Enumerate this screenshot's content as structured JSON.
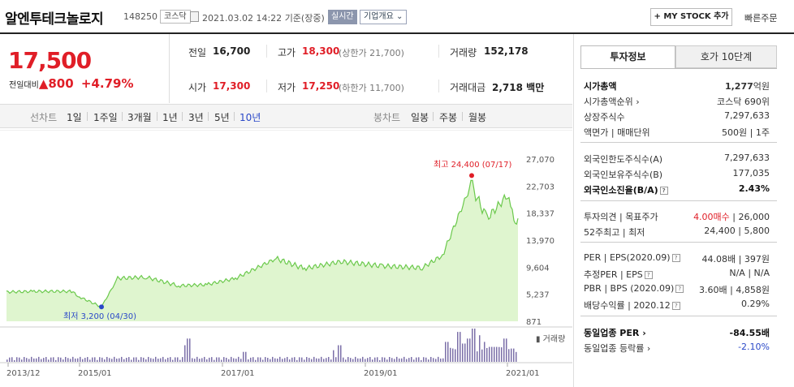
{
  "header": {
    "stock_name": "알엔투테크놀로지",
    "stock_code": "148250",
    "market": "코스닥",
    "datetime": "2021.03.02 14:22",
    "basis": "기준(장중)",
    "realtime_label": "실시간",
    "corp_overview_label": "기업개요",
    "my_stock_label": "+ MY STOCK 추가",
    "quick_order_label": "빠른주문"
  },
  "price": {
    "current": "17,500",
    "change_label": "전일대비",
    "change_arrow": "▲",
    "change": "800",
    "change_pct": "+4.79%"
  },
  "stats": {
    "prev_close_label": "전일",
    "prev_close": "16,700",
    "high_label": "고가",
    "high": "18,300",
    "upper_limit_text": "(상한가 21,700)",
    "volume_label": "거래량",
    "volume": "152,178",
    "open_label": "시가",
    "open": "17,300",
    "low_label": "저가",
    "low": "17,250",
    "lower_limit_text": "(하한가 11,700)",
    "trade_value_label": "거래대금",
    "trade_value": "2,718",
    "trade_value_unit": "백만"
  },
  "period_bar": {
    "line_chart_label": "선차트",
    "periods": [
      "1일",
      "1주일",
      "3개월",
      "1년",
      "3년",
      "5년",
      "10년"
    ],
    "active_period": "10년",
    "candle_chart_label": "봉차트",
    "candle_periods": [
      "일봉",
      "주봉",
      "월봉"
    ]
  },
  "tabs": {
    "investment_info": "투자정보",
    "order_book": "호가 10단계"
  },
  "info": {
    "market_cap_label": "시가총액",
    "market_cap": "1,277",
    "market_cap_unit": "억원",
    "market_cap_rank_label": "시가총액순위",
    "market_cap_rank": "코스닥 690위",
    "shares_label": "상장주식수",
    "shares": "7,297,633",
    "face_value_label": "액면가",
    "trade_unit_label": "매매단위",
    "face_value": "500원",
    "trade_unit": "1주",
    "foreign_limit_label": "외국인한도주식수(A)",
    "foreign_limit": "7,297,633",
    "foreign_hold_label": "외국인보유주식수(B)",
    "foreign_hold": "177,035",
    "foreign_ratio_label": "외국인소진율(B/A)",
    "foreign_ratio": "2.43%",
    "opinion_label": "투자의견",
    "target_label": "목표주가",
    "opinion": "4.00매수",
    "target": "26,000",
    "w52_label": "52주최고",
    "w52_low_label": "최저",
    "w52_high": "24,400",
    "w52_low": "5,800",
    "per_label": "PER",
    "eps_label": "EPS(2020.09)",
    "per": "44.08배",
    "eps": "397원",
    "est_per_label": "추정PER",
    "est_eps_label": "EPS",
    "est_per": "N/A",
    "est_eps": "N/A",
    "pbr_label": "PBR",
    "bps_label": "BPS (2020.09)",
    "pbr": "3.60배",
    "bps": "4,858원",
    "dividend_label": "배당수익률",
    "dividend_date": "2020.12",
    "dividend": "0.29%",
    "industry_per_label": "동일업종 PER",
    "industry_per": "-84.55배",
    "industry_change_label": "동일업종 등락률",
    "industry_change": "-2.10%"
  },
  "chart_data": {
    "type": "area",
    "y_ticks": [
      "27,070",
      "22,703",
      "18,337",
      "13,970",
      "9,604",
      "5,237",
      "871"
    ],
    "ylim": [
      871,
      27070
    ],
    "x_ticks": [
      "2013/12",
      "2015/01",
      "2017/01",
      "2019/01",
      "2021/01"
    ],
    "x": [
      "2013/12",
      "2014/06",
      "2014/12",
      "2015/01",
      "2015/04",
      "2015/09",
      "2016/03",
      "2016/09",
      "2017/01",
      "2017/06",
      "2017/12",
      "2018/06",
      "2018/12",
      "2019/06",
      "2019/12",
      "2020/03",
      "2020/06",
      "2020/09",
      "2020/12",
      "2021/01",
      "2021/03"
    ],
    "values": [
      5600,
      5700,
      5700,
      4800,
      3200,
      7800,
      8000,
      6600,
      6800,
      7800,
      11000,
      9400,
      10500,
      9800,
      9500,
      11500,
      22800,
      17500,
      21500,
      16500,
      17500
    ],
    "max_annotation": "최고 24,400 (07/17)",
    "min_annotation": "최저 3,200 (04/30)",
    "volume_label": "거래량",
    "grid": false,
    "colors": {
      "area": "#dff5cf",
      "line": "#6bc94c",
      "max_dot": "#e01e27",
      "min_dot": "#2a48c8",
      "volume": "#7b6fa8"
    }
  }
}
